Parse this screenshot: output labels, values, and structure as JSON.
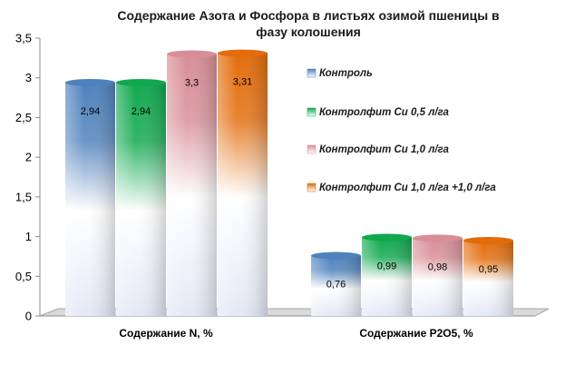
{
  "chart_data": {
    "type": "bar",
    "title_lines": [
      "Содержание Азота и Фосфора в листьях озимой пшеницы в",
      "фазу колошения"
    ],
    "categories": [
      "Содержание N, %",
      "Содержание P2O5, %"
    ],
    "series": [
      {
        "name": "Контроль",
        "values": [
          2.94,
          0.76
        ],
        "labels": [
          "2,94",
          "0,76"
        ],
        "color": "#4f81bd"
      },
      {
        "name": "Контролфит Cu 0,5 л/га",
        "values": [
          2.94,
          0.99
        ],
        "labels": [
          "2,94",
          "0,99"
        ],
        "color": "#0fa84e"
      },
      {
        "name": "Контролфит Cu 1,0 л/га",
        "values": [
          3.3,
          0.98
        ],
        "labels": [
          "3,3",
          "0,98"
        ],
        "color": "#d88e96"
      },
      {
        "name": "Контролфит Cu 1,0 л/га +1,0 л/га",
        "values": [
          3.31,
          0.95
        ],
        "labels": [
          "3,31",
          "0,95"
        ],
        "color": "#e36c0a"
      }
    ],
    "ylim": [
      0,
      3.5
    ],
    "yticks": [
      0,
      0.5,
      1,
      1.5,
      2,
      2.5,
      3,
      3.5
    ],
    "ytick_labels": [
      "0",
      "0,5",
      "1",
      "1,5",
      "2",
      "2,5",
      "3",
      "3,5"
    ],
    "legend_position": "right",
    "grid": false
  }
}
